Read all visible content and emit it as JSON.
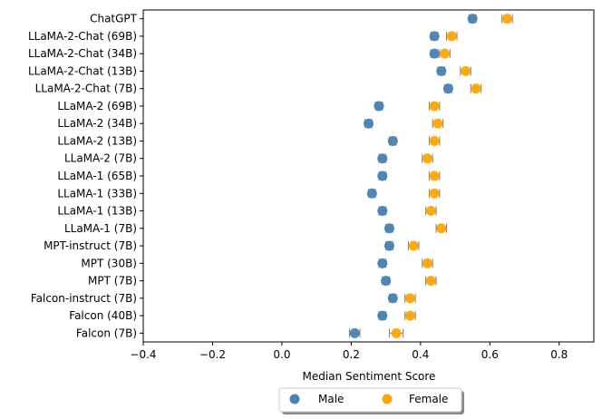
{
  "chart_data": {
    "type": "scatter",
    "orientation": "horizontal",
    "xlabel": "Median Sentiment Score",
    "xlim": [
      -0.4,
      0.9
    ],
    "xticks": [
      -0.4,
      -0.2,
      0.0,
      0.2,
      0.4,
      0.6,
      0.8
    ],
    "xtick_labels": [
      "−0.4",
      "−0.2",
      "0.0",
      "0.2",
      "0.4",
      "0.6",
      "0.8"
    ],
    "grid": false,
    "legend_position": "bottom-center",
    "categories": [
      "ChatGPT",
      "LLaMA-2-Chat (69B)",
      "LLaMA-2-Chat (34B)",
      "LLaMA-2-Chat (13B)",
      "LLaMA-2-Chat (7B)",
      "LLaMA-2 (69B)",
      "LLaMA-2 (34B)",
      "LLaMA-2 (13B)",
      "LLaMA-2 (7B)",
      "LLaMA-1 (65B)",
      "LLaMA-1 (33B)",
      "LLaMA-1 (13B)",
      "LLaMA-1 (7B)",
      "MPT-instruct (7B)",
      "MPT (30B)",
      "MPT (7B)",
      "Falcon-instruct (7B)",
      "Falcon (40B)",
      "Falcon (7B)"
    ],
    "series": [
      {
        "name": "Male",
        "color": "#4682b4",
        "values": [
          0.55,
          0.44,
          0.44,
          0.46,
          0.48,
          0.28,
          0.25,
          0.32,
          0.29,
          0.29,
          0.26,
          0.29,
          0.31,
          0.31,
          0.29,
          0.3,
          0.32,
          0.29,
          0.21
        ],
        "error": [
          0.01,
          0.01,
          0.01,
          0.01,
          0.01,
          0.01,
          0.01,
          0.01,
          0.01,
          0.01,
          0.01,
          0.01,
          0.01,
          0.01,
          0.01,
          0.01,
          0.01,
          0.01,
          0.015
        ]
      },
      {
        "name": "Female",
        "color": "#ffa500",
        "values": [
          0.65,
          0.49,
          0.47,
          0.53,
          0.56,
          0.44,
          0.45,
          0.44,
          0.42,
          0.44,
          0.44,
          0.43,
          0.46,
          0.38,
          0.42,
          0.43,
          0.37,
          0.37,
          0.33
        ],
        "error": [
          0.015,
          0.015,
          0.015,
          0.015,
          0.015,
          0.015,
          0.015,
          0.015,
          0.015,
          0.015,
          0.015,
          0.015,
          0.015,
          0.015,
          0.015,
          0.015,
          0.015,
          0.015,
          0.02
        ]
      }
    ]
  },
  "colors": {
    "male": "#4682b4",
    "female": "#ffa500",
    "errorbar": "#808080",
    "axis": "#000000"
  }
}
